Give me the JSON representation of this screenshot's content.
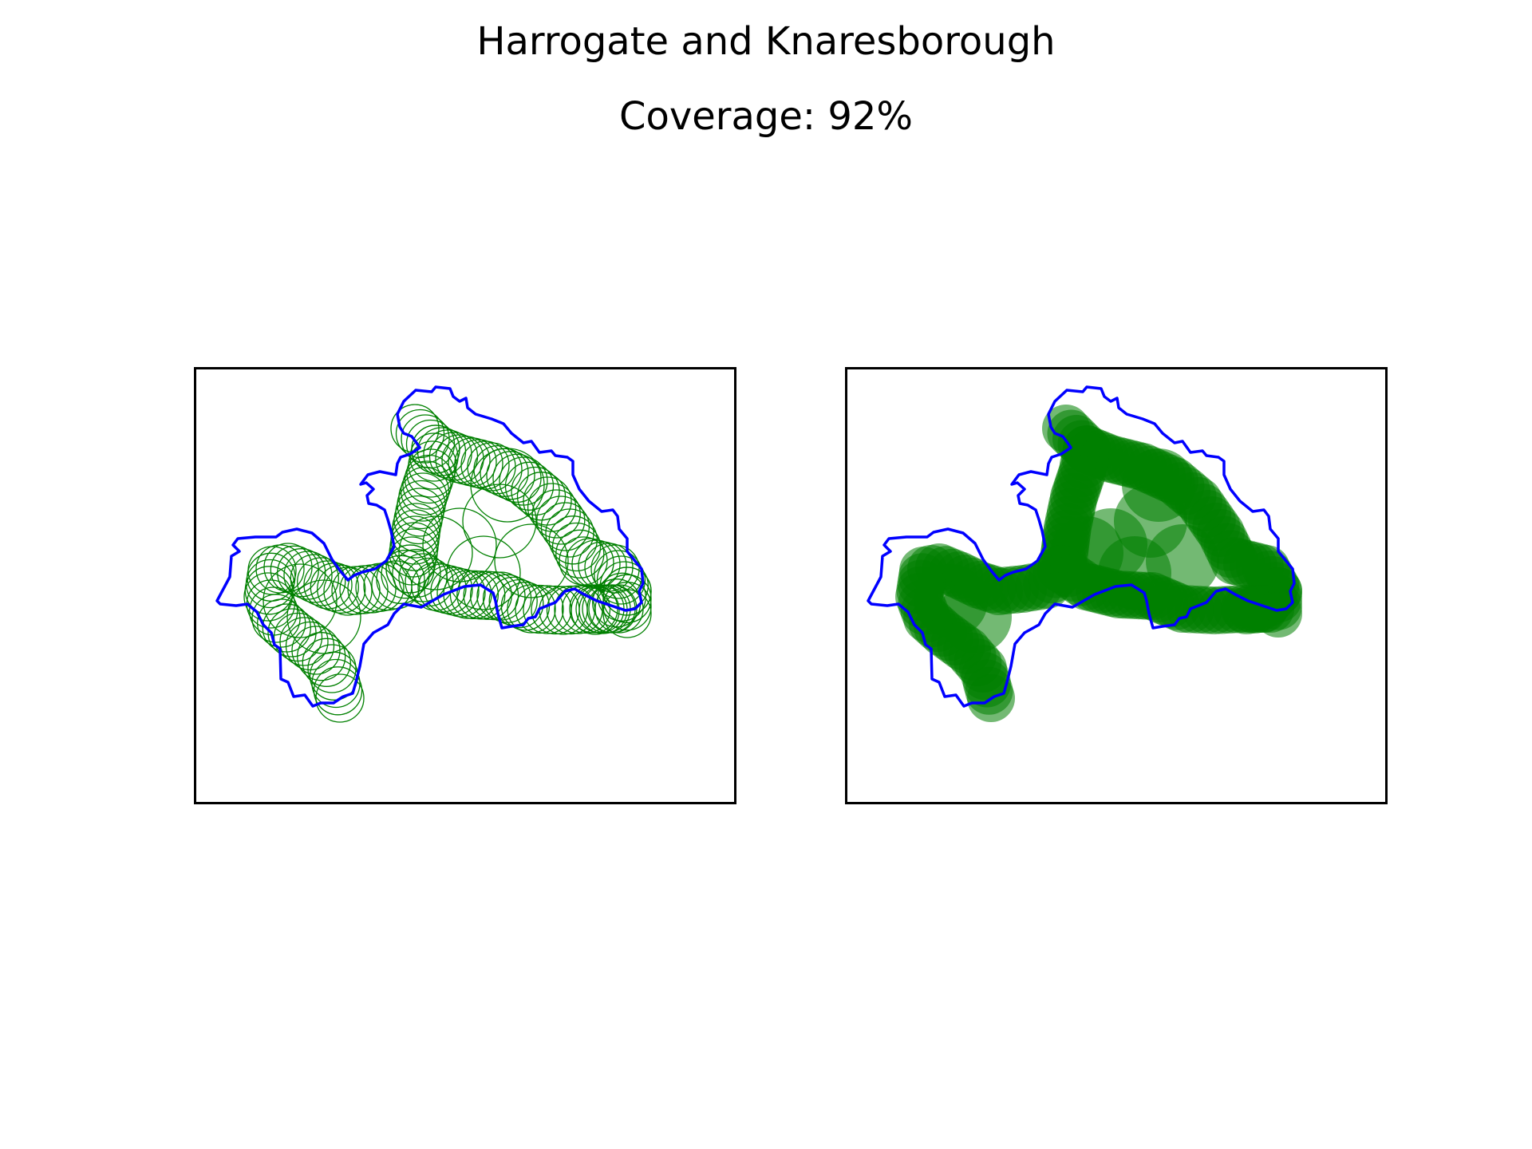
{
  "figure": {
    "title": "Harrogate and Knaresborough",
    "coverage_line": "Coverage: 92%"
  },
  "colors": {
    "boundary": "#0000ff",
    "coverage": "#008000",
    "frame": "#000000",
    "background": "#ffffff"
  },
  "panels": [
    {
      "id": "outline",
      "style": "unfilled circles"
    },
    {
      "id": "filled",
      "style": "filled translucent circles"
    }
  ]
}
